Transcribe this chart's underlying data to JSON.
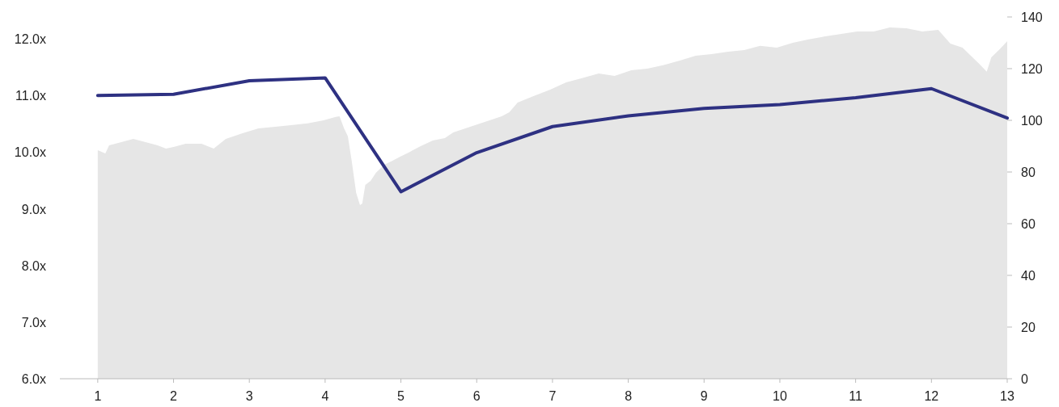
{
  "chart_data": {
    "type": "line",
    "xlim": [
      0.5,
      13
    ],
    "xticks": [
      1,
      2,
      3,
      4,
      5,
      6,
      7,
      8,
      9,
      10,
      11,
      12,
      13
    ],
    "ylim": [
      6,
      12
    ],
    "yticks": [
      {
        "value": 6,
        "label": "6.0x"
      },
      {
        "value": 7,
        "label": "7.0x"
      },
      {
        "value": 8,
        "label": "8.0x"
      },
      {
        "value": 9,
        "label": "9.0x"
      },
      {
        "value": 10,
        "label": "10.0x"
      },
      {
        "value": 11,
        "label": "11.0x"
      },
      {
        "value": 12,
        "label": "12.0x"
      }
    ],
    "y2lim": [
      0,
      140
    ],
    "y2ticks": [
      0,
      20,
      40,
      60,
      80,
      100,
      120,
      140
    ],
    "grid": false,
    "marker": "none",
    "line_style": "solid",
    "series": [
      {
        "type": "area",
        "axis": "y2",
        "color": "#e6e6e6",
        "x": [
          1.0,
          1.1,
          1.15,
          1.31,
          1.47,
          1.63,
          1.79,
          1.9,
          2.0,
          2.16,
          2.37,
          2.53,
          2.69,
          2.91,
          3.12,
          3.34,
          3.55,
          3.77,
          3.98,
          4.14,
          4.19,
          4.25,
          4.3,
          4.35,
          4.41,
          4.46,
          4.49,
          4.53,
          4.6,
          4.67,
          4.78,
          4.89,
          4.99,
          5.1,
          5.26,
          5.42,
          5.58,
          5.69,
          5.85,
          6.01,
          6.17,
          6.33,
          6.43,
          6.54,
          6.75,
          6.97,
          7.18,
          7.39,
          7.61,
          7.82,
          8.04,
          8.25,
          8.46,
          8.68,
          8.89,
          9.1,
          9.32,
          9.53,
          9.74,
          9.96,
          10.17,
          10.38,
          10.6,
          10.81,
          11.02,
          11.24,
          11.45,
          11.67,
          11.88,
          12.09,
          12.25,
          12.41,
          12.52,
          12.63,
          12.73,
          12.79,
          12.9,
          13.0
        ],
        "values": [
          88.4,
          87.2,
          90.3,
          91.6,
          92.8,
          91.6,
          90.3,
          89.1,
          89.7,
          90.9,
          90.9,
          89.1,
          92.8,
          95.0,
          96.9,
          97.5,
          98.1,
          98.8,
          100.0,
          101.3,
          101.6,
          96.9,
          93.8,
          84.4,
          71.9,
          67.2,
          67.8,
          75.0,
          76.6,
          79.7,
          82.8,
          84.4,
          85.9,
          87.5,
          90.0,
          92.2,
          93.1,
          95.3,
          96.9,
          98.4,
          100.0,
          101.6,
          103.1,
          106.9,
          109.4,
          111.9,
          114.7,
          116.3,
          118.1,
          117.2,
          119.4,
          120.0,
          121.3,
          123.1,
          125.0,
          125.6,
          126.6,
          127.2,
          128.8,
          128.1,
          130.0,
          131.3,
          132.5,
          133.4,
          134.4,
          134.4,
          135.9,
          135.6,
          134.4,
          135.0,
          129.7,
          128.1,
          125.0,
          121.9,
          118.8,
          124.4,
          127.5,
          130.6
        ]
      },
      {
        "color": "#2e3182",
        "x": [
          1,
          2,
          3,
          4,
          5,
          6,
          7,
          8,
          9,
          10,
          11,
          12,
          13
        ],
        "values": [
          11.0,
          11.02,
          11.26,
          11.31,
          9.3,
          9.99,
          10.45,
          10.64,
          10.77,
          10.84,
          10.96,
          11.12,
          10.6
        ]
      }
    ]
  }
}
